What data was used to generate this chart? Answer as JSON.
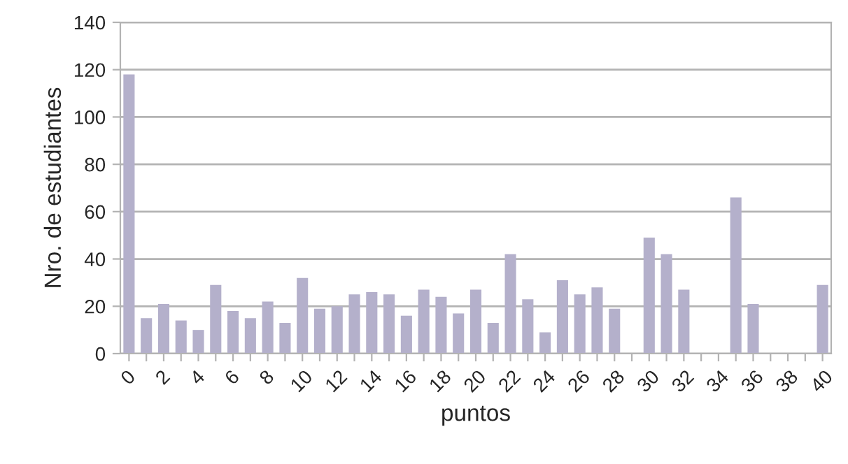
{
  "chart_data": {
    "type": "bar",
    "xlabel": "puntos",
    "ylabel": "Nro. de estudiantes",
    "categories": [
      "0",
      null,
      "2",
      null,
      "4",
      null,
      "6",
      null,
      "8",
      null,
      "10",
      null,
      "12",
      null,
      "14",
      null,
      "16",
      null,
      "18",
      null,
      "20",
      null,
      "22",
      null,
      "24",
      null,
      "26",
      null,
      "28",
      null,
      "30",
      null,
      "32",
      null,
      "34",
      null,
      "36",
      null,
      "38",
      null,
      "40"
    ],
    "values": [
      118,
      15,
      21,
      14,
      10,
      29,
      18,
      15,
      22,
      13,
      32,
      19,
      20,
      25,
      26,
      25,
      16,
      27,
      24,
      17,
      27,
      13,
      42,
      23,
      9,
      31,
      25,
      28,
      19,
      0,
      49,
      42,
      27,
      0,
      0,
      66,
      21,
      0,
      0,
      0,
      29
    ],
    "color": "#b4b0cb",
    "ylim": [
      0,
      140
    ],
    "yticks": [
      0,
      20,
      40,
      60,
      80,
      100,
      120,
      140
    ],
    "grid": "y"
  }
}
